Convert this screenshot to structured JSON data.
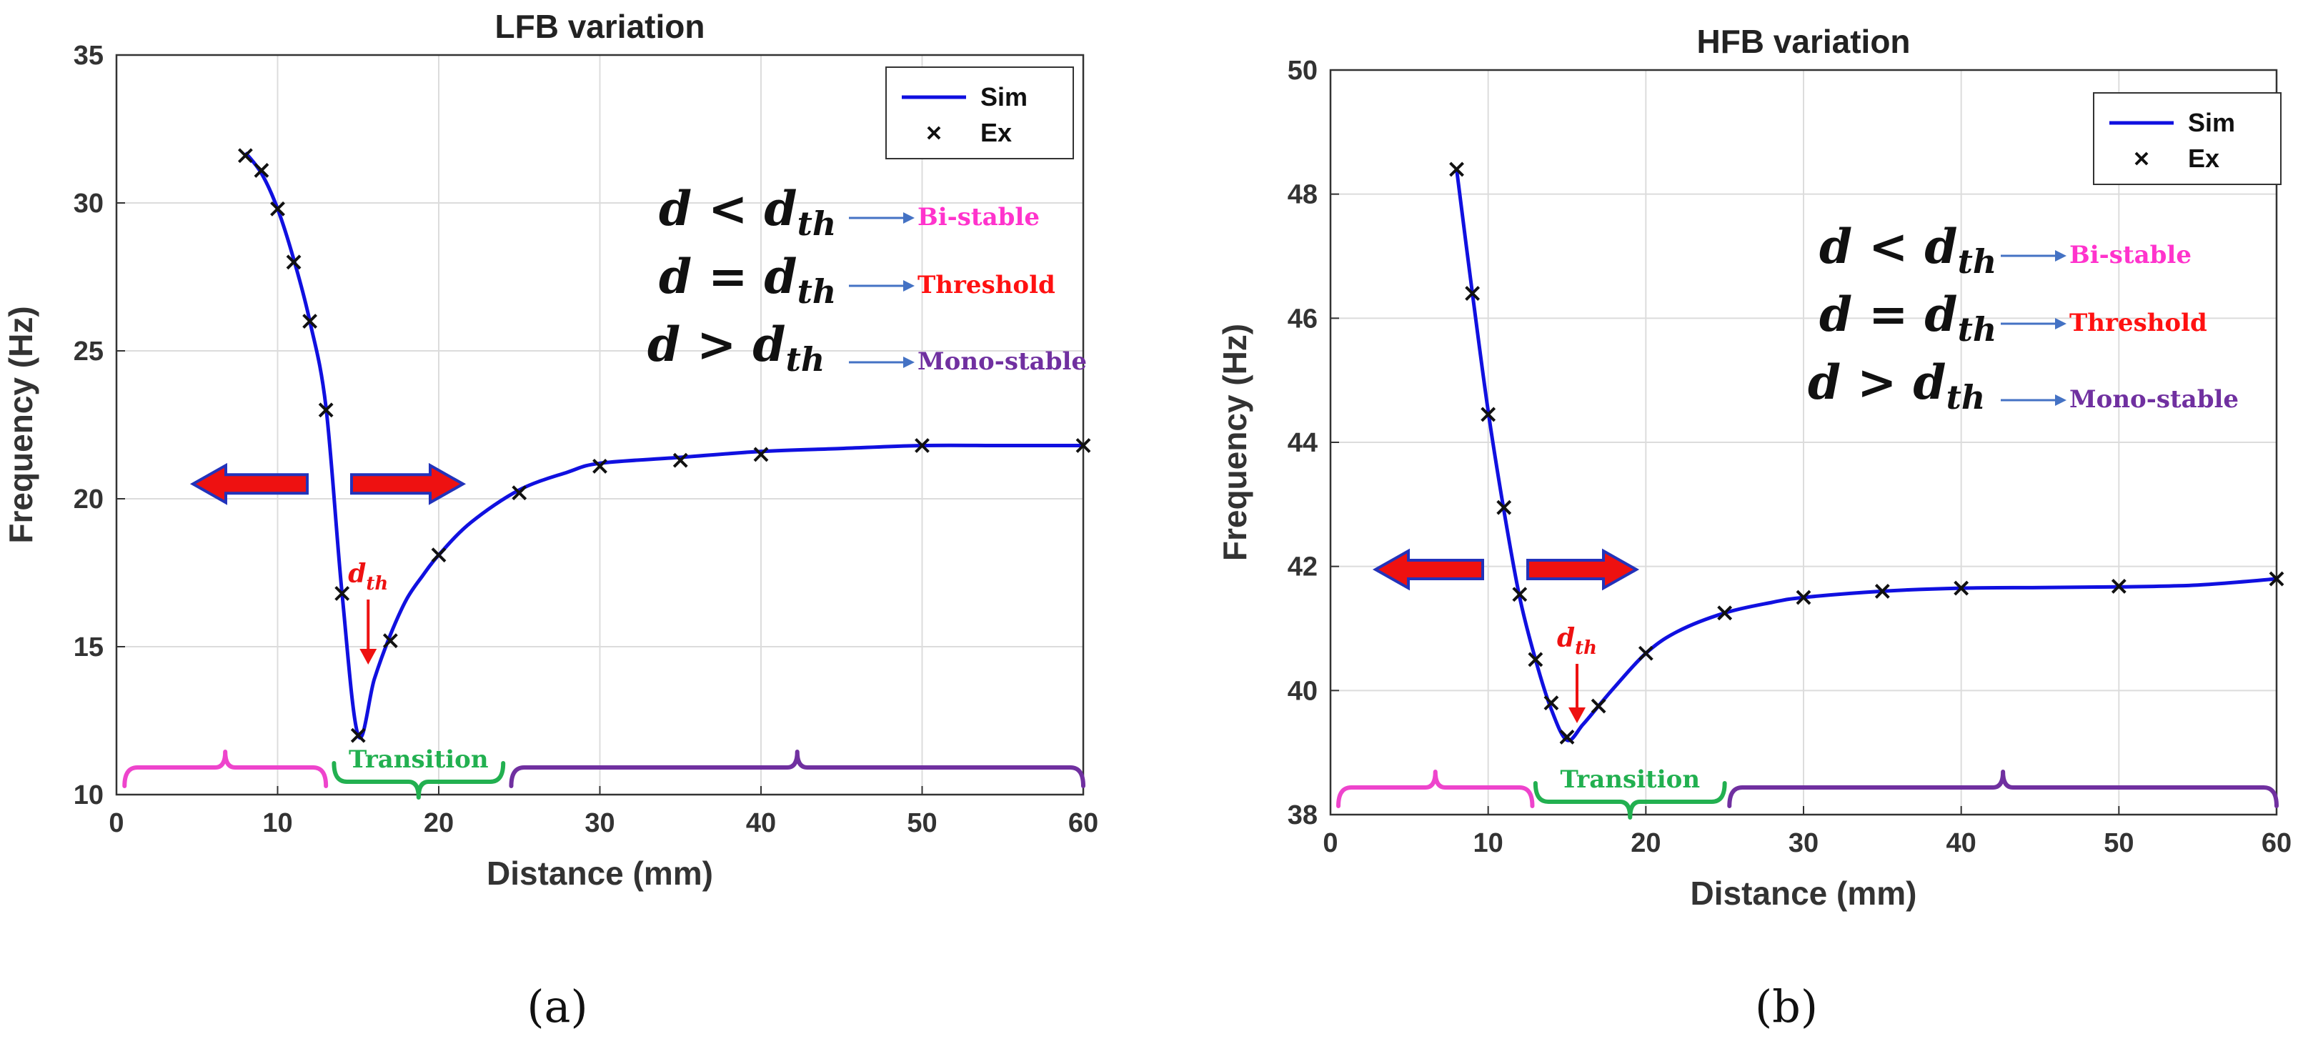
{
  "figure": {
    "label_a": "(a)",
    "label_b": "(b)"
  },
  "chart_data": [
    {
      "type": "line",
      "title": "LFB variation",
      "xlabel": "Distance (mm)",
      "ylabel": "Frequency (Hz)",
      "xlim": [
        0,
        60
      ],
      "ylim": [
        10,
        35
      ],
      "xticks": [
        0,
        10,
        20,
        30,
        40,
        50,
        60
      ],
      "yticks": [
        10,
        15,
        20,
        25,
        30,
        35
      ],
      "grid": true,
      "legend_position": "top-right",
      "series": [
        {
          "name": "Sim",
          "style": "line",
          "color": "#1010e0",
          "x": [
            8,
            9,
            10,
            11,
            12,
            13,
            14,
            15,
            16,
            17,
            18,
            19,
            20,
            22,
            25,
            28,
            30,
            35,
            40,
            45,
            50,
            55,
            60
          ],
          "y": [
            31.7,
            31.0,
            29.8,
            28.1,
            26.0,
            23.1,
            16.8,
            12.0,
            13.9,
            15.4,
            16.6,
            17.4,
            18.1,
            19.2,
            20.3,
            20.9,
            21.2,
            21.4,
            21.6,
            21.7,
            21.8,
            21.8,
            21.8
          ]
        },
        {
          "name": "Ex",
          "style": "marker-x",
          "color": "#111111",
          "x": [
            8,
            9,
            10,
            11,
            12,
            13,
            14,
            15,
            17,
            20,
            25,
            30,
            35,
            40,
            50,
            60
          ],
          "y": [
            31.6,
            31.1,
            29.8,
            28.0,
            26.0,
            23.0,
            16.8,
            12.0,
            15.2,
            18.1,
            20.2,
            21.1,
            21.3,
            21.5,
            21.8,
            21.8
          ]
        }
      ],
      "annotations": {
        "dth_label": "d_th",
        "dth_x": 15,
        "equations": [
          {
            "lhs": "d",
            "op": "<",
            "rhs": "d",
            "sub": "th",
            "regime": "Bi-stable",
            "color": "#ff33cc"
          },
          {
            "lhs": "d",
            "op": "=",
            "rhs": "d",
            "sub": "th",
            "regime": "Threshold",
            "color": "#ff1111"
          },
          {
            "lhs": "d",
            "op": ">",
            "rhs": "d",
            "sub": "th",
            "regime": "Mono-stable",
            "color": "#7030a0"
          }
        ],
        "regions": [
          {
            "name": "bistable",
            "label": "",
            "x_range": [
              0.5,
              13
            ],
            "color": "#ee44cc",
            "side": "above"
          },
          {
            "name": "transition",
            "label": "Transition",
            "x_range": [
              13.5,
              24
            ],
            "color": "#22b050",
            "side": "below"
          },
          {
            "name": "monostable",
            "label": "",
            "x_range": [
              24.5,
              60
            ],
            "color": "#7030a0",
            "side": "above"
          }
        ],
        "arrows_y": 20.5
      }
    },
    {
      "type": "line",
      "title": "HFB variation",
      "xlabel": "Distance (mm)",
      "ylabel": "Frequency (Hz)",
      "xlim": [
        0,
        60
      ],
      "ylim": [
        38,
        50
      ],
      "xticks": [
        0,
        10,
        20,
        30,
        40,
        50,
        60
      ],
      "yticks": [
        38,
        40,
        42,
        44,
        46,
        48,
        50
      ],
      "grid": true,
      "legend_position": "top-right",
      "series": [
        {
          "name": "Sim",
          "style": "line",
          "color": "#1010e0",
          "x": [
            8,
            9,
            10,
            11,
            12,
            13,
            14,
            15,
            16,
            17,
            18,
            20,
            22,
            25,
            28,
            30,
            35,
            40,
            45,
            50,
            55,
            60
          ],
          "y": [
            48.4,
            46.4,
            44.5,
            42.9,
            41.5,
            40.5,
            39.7,
            39.2,
            39.45,
            39.75,
            40.05,
            40.6,
            40.95,
            41.25,
            41.42,
            41.5,
            41.6,
            41.65,
            41.66,
            41.67,
            41.7,
            41.8
          ]
        },
        {
          "name": "Ex",
          "style": "marker-x",
          "color": "#111111",
          "x": [
            8,
            9,
            10,
            11,
            12,
            13,
            14,
            15,
            17,
            20,
            25,
            30,
            35,
            40,
            50,
            60
          ],
          "y": [
            48.4,
            46.4,
            44.45,
            42.95,
            41.55,
            40.5,
            39.8,
            39.25,
            39.75,
            40.6,
            41.25,
            41.5,
            41.6,
            41.65,
            41.68,
            41.8
          ]
        }
      ],
      "annotations": {
        "dth_label": "d_th",
        "dth_x": 15,
        "equations": [
          {
            "lhs": "d",
            "op": "<",
            "rhs": "d",
            "sub": "th",
            "regime": "Bi-stable",
            "color": "#ff33cc"
          },
          {
            "lhs": "d",
            "op": "=",
            "rhs": "d",
            "sub": "th",
            "regime": "Threshold",
            "color": "#ff1111"
          },
          {
            "lhs": "d",
            "op": ">",
            "rhs": "d",
            "sub": "th",
            "regime": "Mono-stable",
            "color": "#7030a0"
          }
        ],
        "regions": [
          {
            "name": "bistable",
            "label": "",
            "x_range": [
              0.5,
              12.8
            ],
            "color": "#ee44cc",
            "side": "above"
          },
          {
            "name": "transition",
            "label": "Transition",
            "x_range": [
              13,
              25
            ],
            "color": "#22b050",
            "side": "below"
          },
          {
            "name": "monostable",
            "label": "",
            "x_range": [
              25.3,
              60
            ],
            "color": "#7030a0",
            "side": "above"
          }
        ],
        "arrows_y": 41.95
      }
    }
  ]
}
